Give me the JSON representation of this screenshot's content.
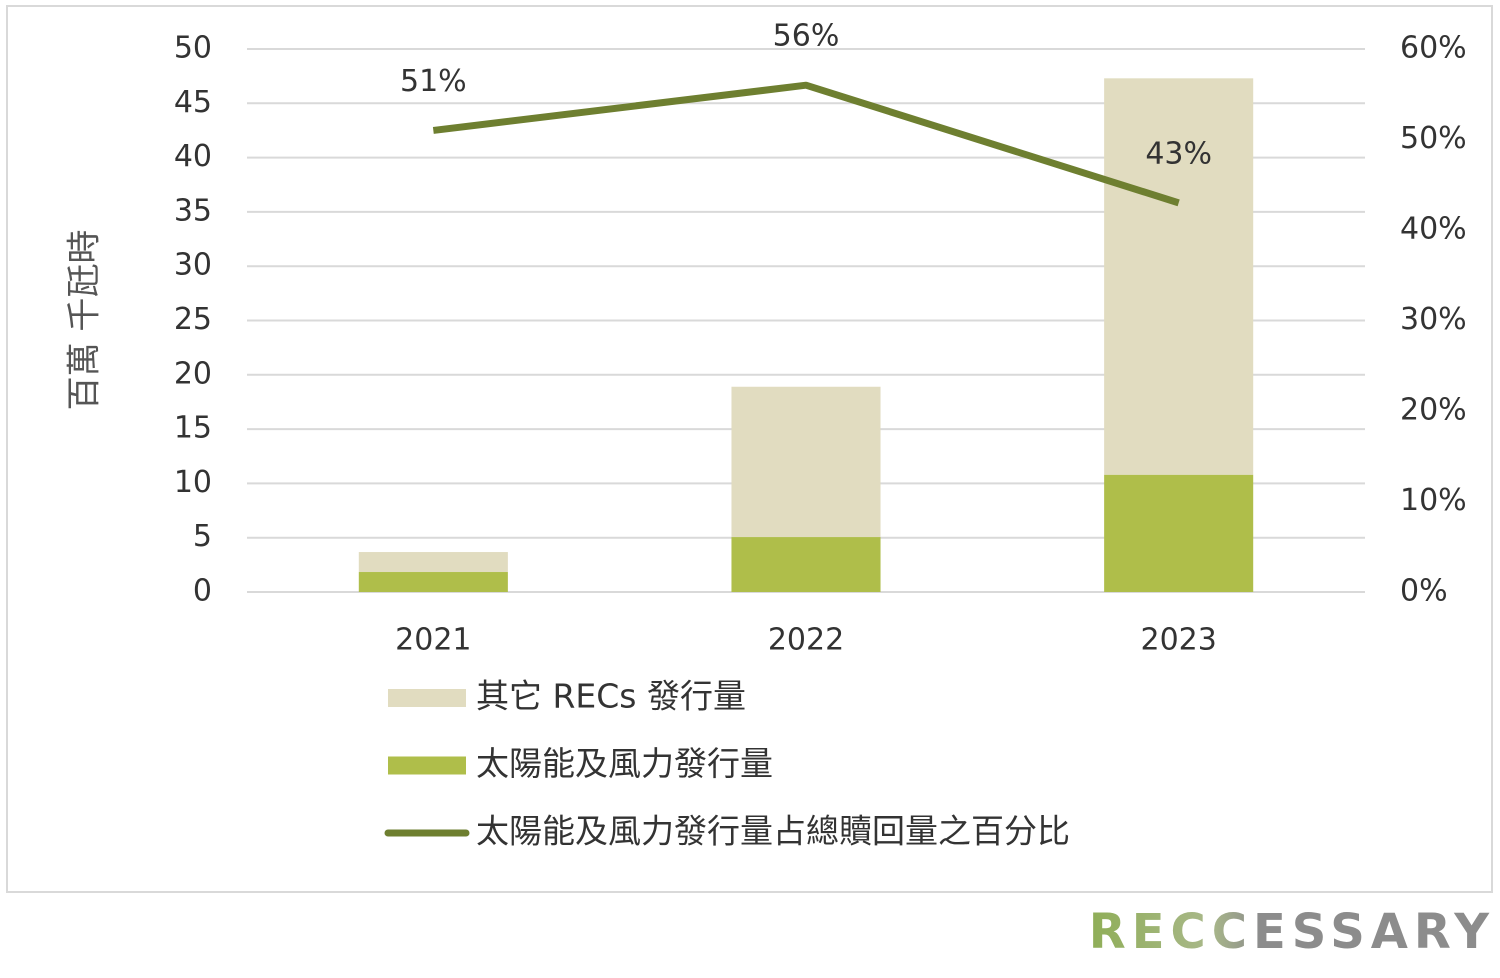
{
  "chart_data": {
    "type": "bar",
    "categories": [
      "2021",
      "2022",
      "2023"
    ],
    "series": [
      {
        "name": "其它 RECs 發行量",
        "color": "#e1dcc0",
        "values": [
          1.84,
          13.84,
          36.5
        ]
      },
      {
        "name": "太陽能及風力發行量",
        "color": "#afbe4a",
        "values": [
          1.84,
          5.06,
          10.8
        ]
      },
      {
        "name": "太陽能及風力發行量占總贖回量之百分比",
        "color": "#6e7f30",
        "type": "line",
        "axis": "y2",
        "values": [
          51,
          56,
          43
        ],
        "value_labels": [
          "51%",
          "56%",
          "43%"
        ]
      }
    ],
    "y_label": "百萬 千瓩時",
    "ylim": [
      0,
      50
    ],
    "yticks": [
      0,
      5,
      10,
      15,
      20,
      25,
      30,
      35,
      40,
      45,
      50
    ],
    "y2lim": [
      0,
      60
    ],
    "y2ticks": [
      {
        "value": 0,
        "label": "0%"
      },
      {
        "value": 10,
        "label": "10%"
      },
      {
        "value": 20,
        "label": "20%"
      },
      {
        "value": 30,
        "label": "30%"
      },
      {
        "value": 40,
        "label": "40%"
      },
      {
        "value": 50,
        "label": "50%"
      },
      {
        "value": 60,
        "label": "60%"
      }
    ],
    "grid": true,
    "stacked": true,
    "legend": "bottom",
    "brand": "RECCESSARY"
  }
}
